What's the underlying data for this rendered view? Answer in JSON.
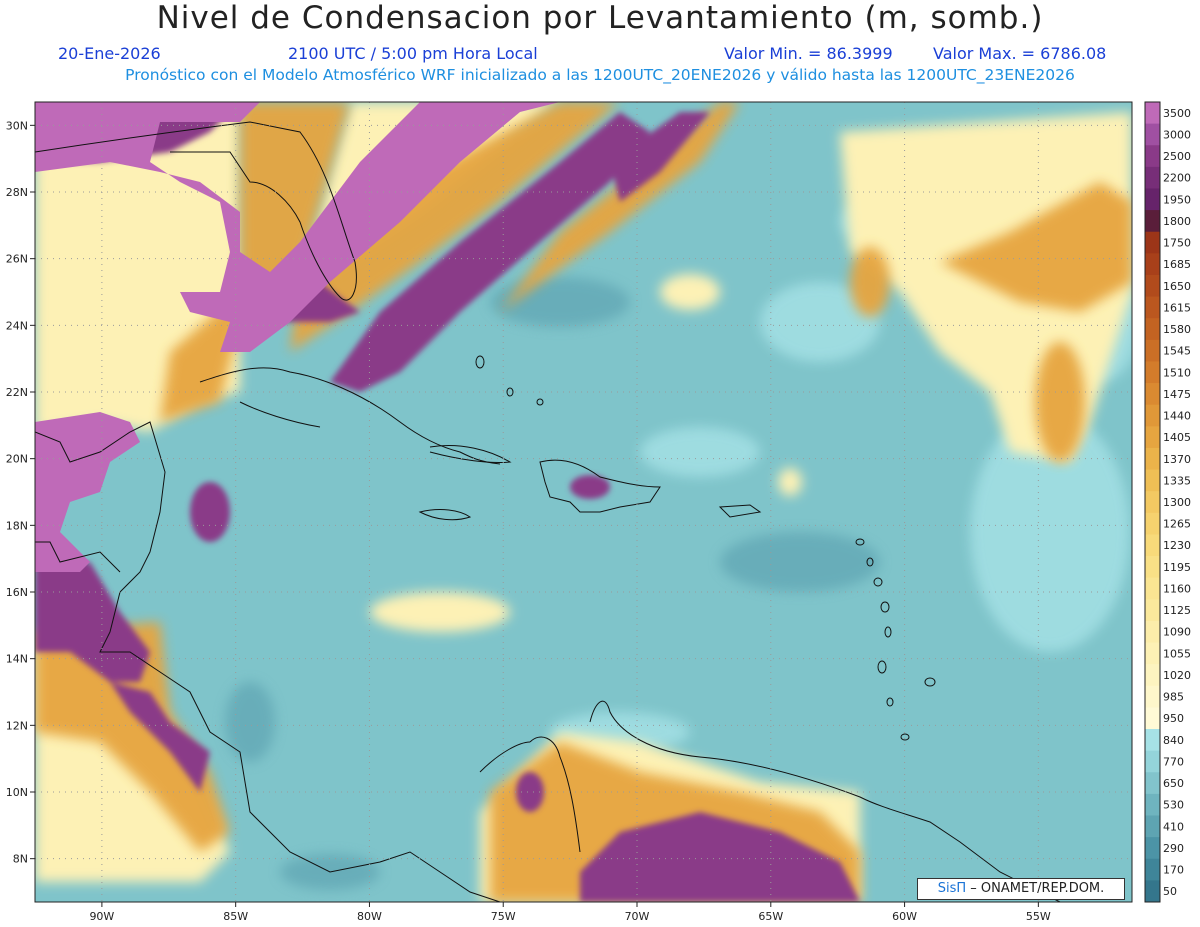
{
  "title": "Nivel de Condensacion por Levantamiento (m, somb.)",
  "header": {
    "date": "20-Ene-2026",
    "time": "2100 UTC / 5:00 pm Hora Local",
    "min_label": "Valor Min. = 86.3999",
    "max_label": "Valor Max. = 6786.08",
    "subtitle": "Pronóstico con el Modelo Atmosférico WRF inicializado a las 1200UTC_20ENE2026 y válido hasta las  1200UTC_23ENE2026"
  },
  "map": {
    "lon_range": [
      -92.5,
      -51.5
    ],
    "lat_range": [
      6.7,
      30.7
    ],
    "lon_ticks": [
      {
        "v": -90,
        "t": "90W"
      },
      {
        "v": -85,
        "t": "85W"
      },
      {
        "v": -80,
        "t": "80W"
      },
      {
        "v": -75,
        "t": "75W"
      },
      {
        "v": -70,
        "t": "70W"
      },
      {
        "v": -65,
        "t": "65W"
      },
      {
        "v": -60,
        "t": "60W"
      },
      {
        "v": -55,
        "t": "55W"
      }
    ],
    "lat_ticks": [
      {
        "v": 8,
        "t": "8N"
      },
      {
        "v": 10,
        "t": "10N"
      },
      {
        "v": 12,
        "t": "12N"
      },
      {
        "v": 14,
        "t": "14N"
      },
      {
        "v": 16,
        "t": "16N"
      },
      {
        "v": 18,
        "t": "18N"
      },
      {
        "v": 20,
        "t": "20N"
      },
      {
        "v": 22,
        "t": "22N"
      },
      {
        "v": 24,
        "t": "24N"
      },
      {
        "v": 26,
        "t": "26N"
      },
      {
        "v": 28,
        "t": "28N"
      },
      {
        "v": 30,
        "t": "30N"
      }
    ],
    "background_color": "#7fc4ca"
  },
  "colorbar": {
    "levels": [
      "3500",
      "3000",
      "2500",
      "2200",
      "1950",
      "1800",
      "1750",
      "1685",
      "1650",
      "1615",
      "1580",
      "1545",
      "1510",
      "1475",
      "1440",
      "1405",
      "1370",
      "1335",
      "1300",
      "1265",
      "1230",
      "1195",
      "1160",
      "1125",
      "1090",
      "1055",
      "1020",
      "985",
      "950",
      "840",
      "770",
      "650",
      "530",
      "410",
      "290",
      "170",
      "50"
    ],
    "colors": [
      "#bf6ab8",
      "#a050a2",
      "#8a3a88",
      "#772e78",
      "#66236a",
      "#5a1e3a",
      "#9c3518",
      "#a8401a",
      "#b14b1c",
      "#bb571f",
      "#c36322",
      "#cb6f26",
      "#d37c2b",
      "#da8a31",
      "#e09838",
      "#e6a540",
      "#ebb34a",
      "#efbf55",
      "#f3c962",
      "#f6d26e",
      "#f8da7a",
      "#f9e086",
      "#fae592",
      "#fbe99c",
      "#fcedaa",
      "#fdf1b5",
      "#fdf4c0",
      "#fef7cb",
      "#fffad6",
      "#a6e2e6",
      "#94d4da",
      "#82c4cc",
      "#6fb4bf",
      "#5ea4b2",
      "#4c94a6",
      "#3f8599",
      "#34768c"
    ]
  },
  "credit": {
    "brand": "SisΠ",
    "text": "– ONAMET/REP.DOM."
  }
}
